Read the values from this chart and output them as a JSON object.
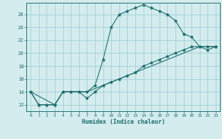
{
  "title": "",
  "xlabel": "Humidex (Indice chaleur)",
  "ylabel": "",
  "bg_color": "#d4ecee",
  "grid_color": "#9ecfd4",
  "line_color": "#1a6b6b",
  "xlim": [
    -0.5,
    23.5
  ],
  "ylim": [
    11,
    27.8
  ],
  "xticks": [
    0,
    1,
    2,
    3,
    4,
    5,
    6,
    7,
    8,
    9,
    10,
    11,
    12,
    13,
    14,
    15,
    16,
    17,
    18,
    19,
    20,
    21,
    22,
    23
  ],
  "yticks": [
    12,
    14,
    16,
    18,
    20,
    22,
    24,
    26
  ],
  "line1_x": [
    0,
    1,
    2,
    3,
    4,
    5,
    6,
    7,
    8,
    9,
    10,
    11,
    12,
    13,
    14,
    15,
    16,
    17,
    18,
    19,
    20,
    21,
    22,
    23
  ],
  "line1_y": [
    14,
    12,
    12,
    12,
    14,
    14,
    14,
    14,
    15,
    19,
    24,
    26,
    26.5,
    27,
    27.5,
    27,
    26.5,
    26,
    25,
    23,
    22.5,
    21,
    20.5,
    21
  ],
  "line2_x": [
    0,
    1,
    2,
    3,
    4,
    5,
    6,
    7,
    8,
    9,
    10,
    11,
    12,
    13,
    14,
    15,
    16,
    17,
    18,
    19,
    20,
    21,
    22,
    23
  ],
  "line2_y": [
    14,
    12,
    12,
    12,
    14,
    14,
    14,
    13,
    14,
    15,
    15.5,
    16,
    16.5,
    17,
    18,
    18.5,
    19,
    19.5,
    20,
    20.5,
    21,
    21,
    21,
    21
  ],
  "line3_x": [
    0,
    3,
    4,
    5,
    6,
    7,
    8,
    9,
    10,
    11,
    12,
    13,
    14,
    15,
    16,
    17,
    18,
    19,
    20,
    21,
    22,
    23
  ],
  "line3_y": [
    14,
    12,
    14,
    14,
    14,
    14,
    14.5,
    15,
    15.5,
    16,
    16.5,
    17,
    17.5,
    18,
    18.5,
    19,
    19.5,
    20,
    20.5,
    21,
    21,
    21
  ]
}
